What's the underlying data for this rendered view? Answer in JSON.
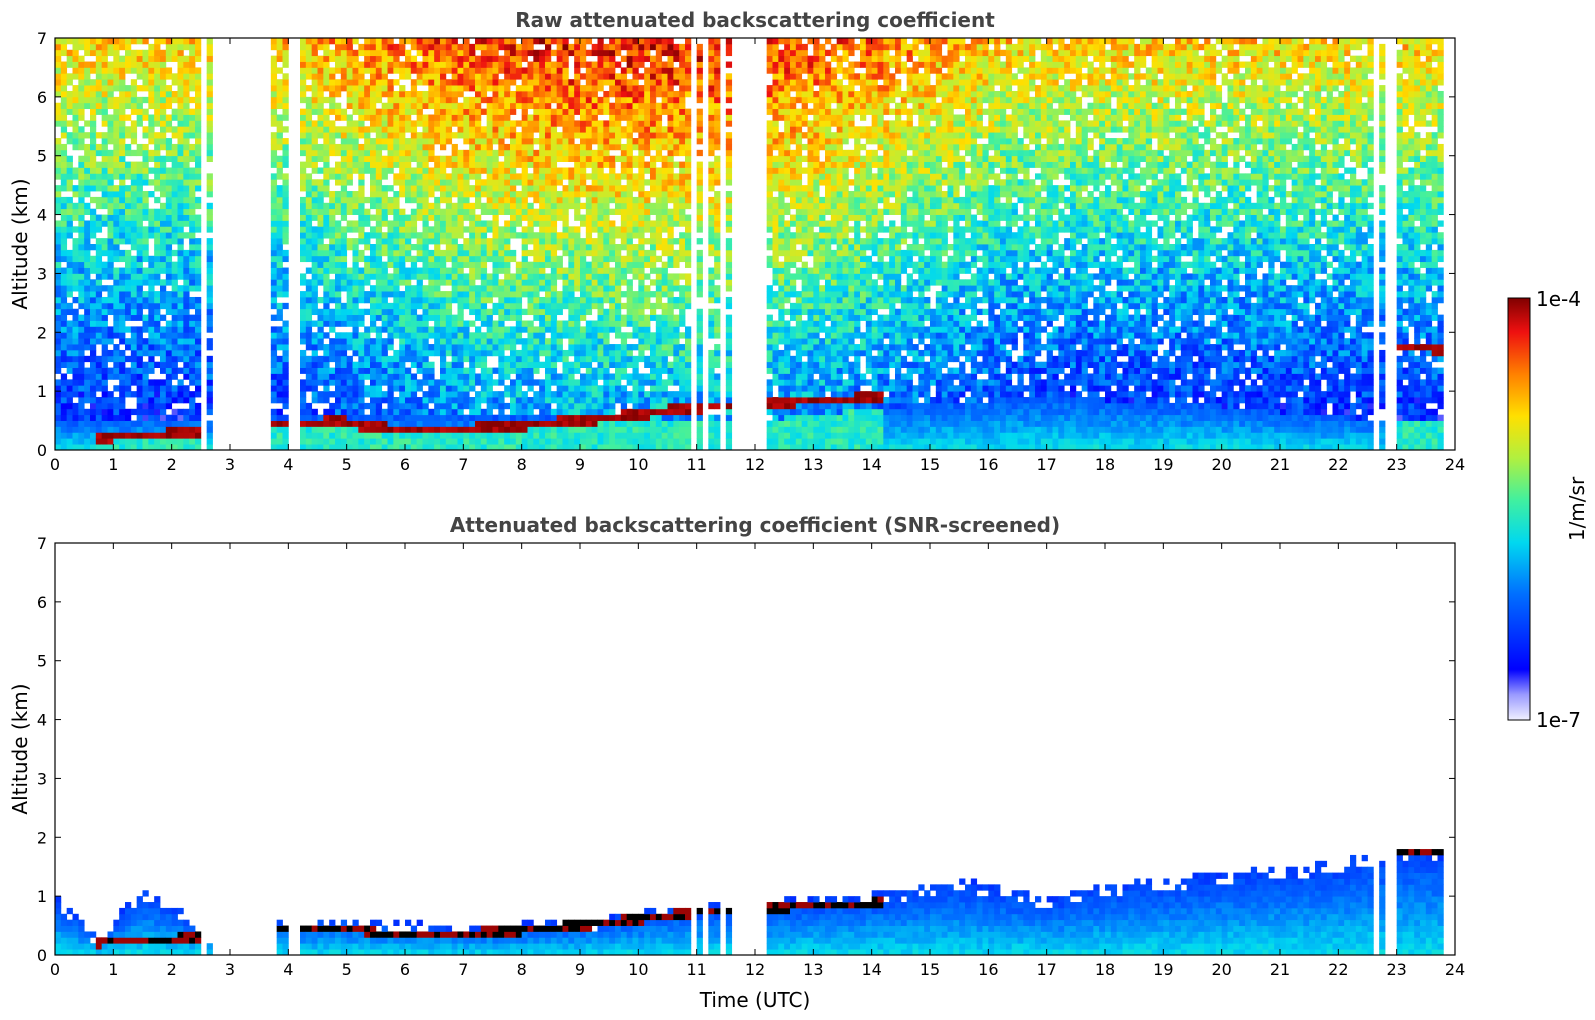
{
  "chart_data": [
    {
      "type": "heatmap",
      "title": "Raw attenuated backscattering coefficient",
      "xlabel": "",
      "ylabel": "Altitude (km)",
      "xlim": [
        0,
        24
      ],
      "ylim": [
        0,
        7
      ],
      "xticks": [
        "0",
        "1",
        "2",
        "3",
        "4",
        "5",
        "6",
        "7",
        "8",
        "9",
        "10",
        "11",
        "12",
        "13",
        "14",
        "15",
        "16",
        "17",
        "18",
        "19",
        "20",
        "21",
        "22",
        "23",
        "24"
      ],
      "yticks": [
        "0",
        "1",
        "2",
        "3",
        "4",
        "5",
        "6",
        "7"
      ],
      "colorbar": {
        "label": "1/m/sr",
        "min_label": "1e-7",
        "max_label": "1e-4",
        "scale": "log"
      },
      "data_gaps_hours": [
        [
          2.55,
          2.62
        ],
        [
          2.7,
          2.78
        ],
        [
          2.8,
          3.75
        ],
        [
          4.0,
          4.23
        ],
        [
          10.92,
          11.05
        ],
        [
          11.12,
          11.18
        ],
        [
          11.28,
          11.35
        ],
        [
          11.4,
          11.5
        ],
        [
          11.62,
          11.72
        ],
        [
          11.75,
          12.2
        ],
        [
          22.4,
          22.45
        ],
        [
          22.58,
          22.7
        ],
        [
          22.82,
          22.98
        ],
        [
          23.08,
          23.14
        ],
        [
          23.85,
          24.0
        ]
      ],
      "cloud_base_km": [
        [
          0.75,
          0.22
        ],
        [
          2.6,
          0.3
        ],
        [
          3.8,
          0.45
        ],
        [
          5.0,
          0.48
        ],
        [
          5.5,
          0.38
        ],
        [
          6.5,
          0.33
        ],
        [
          8.0,
          0.42
        ],
        [
          9.5,
          0.55
        ],
        [
          10.9,
          0.72
        ],
        [
          12.3,
          0.8
        ],
        [
          13.0,
          0.85
        ],
        [
          14.0,
          0.88
        ],
        [
          23.1,
          1.75
        ],
        [
          23.8,
          1.72
        ]
      ],
      "boundary_layer_top_km": [
        [
          0,
          0.5
        ],
        [
          6,
          0.6
        ],
        [
          12,
          0.5
        ],
        [
          15,
          0.8
        ],
        [
          17,
          0.9
        ],
        [
          20,
          0.75
        ],
        [
          22,
          0.55
        ],
        [
          24,
          0.5
        ]
      ]
    },
    {
      "type": "heatmap",
      "title": "Attenuated backscattering coefficient (SNR-screened)",
      "xlabel": "Time (UTC)",
      "ylabel": "Altitude (km)",
      "xlim": [
        0,
        24
      ],
      "ylim": [
        0,
        7
      ],
      "xticks": [
        "0",
        "1",
        "2",
        "3",
        "4",
        "5",
        "6",
        "7",
        "8",
        "9",
        "10",
        "11",
        "12",
        "13",
        "14",
        "15",
        "16",
        "17",
        "18",
        "19",
        "20",
        "21",
        "22",
        "23",
        "24"
      ],
      "yticks": [
        "0",
        "1",
        "2",
        "3",
        "4",
        "5",
        "6",
        "7"
      ],
      "colorbar": {
        "label": "1/m/sr",
        "min_label": "1e-7",
        "max_label": "1e-4",
        "scale": "log"
      },
      "valid_signal_top_km": [
        [
          0,
          1.1
        ],
        [
          0.75,
          0.3
        ],
        [
          1.5,
          1.15
        ],
        [
          2.5,
          0.55
        ],
        [
          2.8,
          0
        ],
        [
          3.75,
          0
        ],
        [
          3.8,
          0.6
        ],
        [
          5,
          0.65
        ],
        [
          7,
          0.5
        ],
        [
          9,
          0.6
        ],
        [
          10.9,
          0.85
        ],
        [
          12.3,
          0.95
        ],
        [
          14,
          1.05
        ],
        [
          15.5,
          1.3
        ],
        [
          16.5,
          1.1
        ],
        [
          17,
          0.95
        ],
        [
          18,
          1.2
        ],
        [
          20,
          1.4
        ],
        [
          22,
          1.6
        ],
        [
          23,
          1.85
        ],
        [
          23.85,
          1.8
        ]
      ]
    }
  ]
}
